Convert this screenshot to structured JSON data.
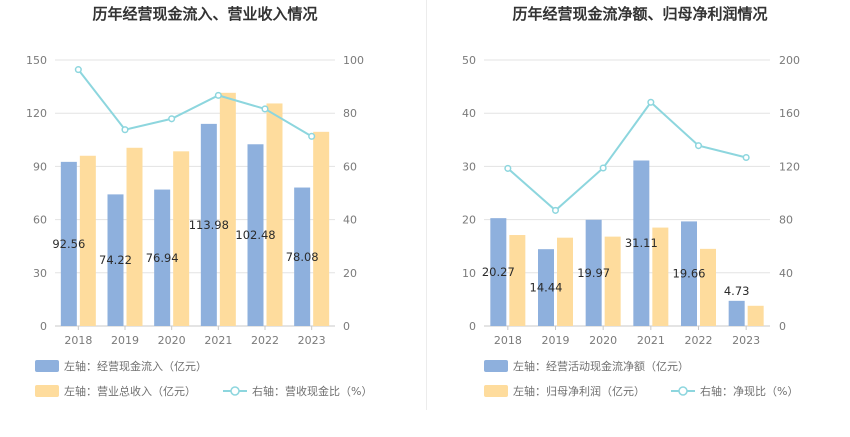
{
  "chart_data": [
    {
      "type": "bar",
      "title": "历年经营现金流入、营业收入情况",
      "categories": [
        "2018",
        "2019",
        "2020",
        "2021",
        "2022",
        "2023"
      ],
      "left_axis": {
        "ylim": [
          0,
          150
        ],
        "ticks": [
          "0",
          "30",
          "60",
          "90",
          "120",
          "150"
        ]
      },
      "right_axis": {
        "ylim": [
          0,
          100
        ],
        "ticks": [
          "0",
          "20",
          "40",
          "60",
          "80",
          "100"
        ]
      },
      "grid": true,
      "legend_position": "bottom",
      "series": [
        {
          "name": "左轴：经营现金流入（亿元）",
          "type": "bar",
          "axis": "left",
          "color": "#8eb0dd",
          "values": [
            92.56,
            74.22,
            76.94,
            113.98,
            102.48,
            78.08
          ],
          "labels": [
            "92.56",
            "74.22",
            "76.94",
            "113.98",
            "102.48",
            "78.08"
          ]
        },
        {
          "name": "左轴：营业总收入（亿元）",
          "type": "bar",
          "axis": "left",
          "color": "#fedc9d",
          "values": [
            96,
            100.5,
            98.5,
            131.5,
            125.5,
            109.5
          ]
        },
        {
          "name": "右轴：营收现金比（%）",
          "type": "line",
          "axis": "right",
          "color": "#8dd6de",
          "values": [
            96.4,
            73.8,
            77.9,
            86.7,
            81.6,
            71.3
          ]
        }
      ]
    },
    {
      "type": "bar",
      "title": "历年经营现金流净额、归母净利润情况",
      "categories": [
        "2018",
        "2019",
        "2020",
        "2021",
        "2022",
        "2023"
      ],
      "left_axis": {
        "ylim": [
          0,
          50
        ],
        "ticks": [
          "0",
          "10",
          "20",
          "30",
          "40",
          "50"
        ]
      },
      "right_axis": {
        "ylim": [
          0,
          200
        ],
        "ticks": [
          "0",
          "40",
          "80",
          "120",
          "160",
          "200"
        ]
      },
      "grid": true,
      "legend_position": "bottom",
      "series": [
        {
          "name": "左轴：经营活动现金流净额（亿元）",
          "type": "bar",
          "axis": "left",
          "color": "#8eb0dd",
          "values": [
            20.27,
            14.44,
            19.97,
            31.11,
            19.66,
            4.73
          ],
          "labels": [
            "20.27",
            "14.44",
            "19.97",
            "31.11",
            "19.66",
            "4.73"
          ]
        },
        {
          "name": "左轴：归母净利润（亿元）",
          "type": "bar",
          "axis": "left",
          "color": "#fedc9d",
          "values": [
            17.1,
            16.6,
            16.8,
            18.5,
            14.5,
            3.8
          ]
        },
        {
          "name": "右轴：净现比（%）",
          "type": "line",
          "axis": "right",
          "color": "#8dd6de",
          "values": [
            118.5,
            86.9,
            118.8,
            168.2,
            135.6,
            126.7
          ]
        }
      ]
    }
  ]
}
